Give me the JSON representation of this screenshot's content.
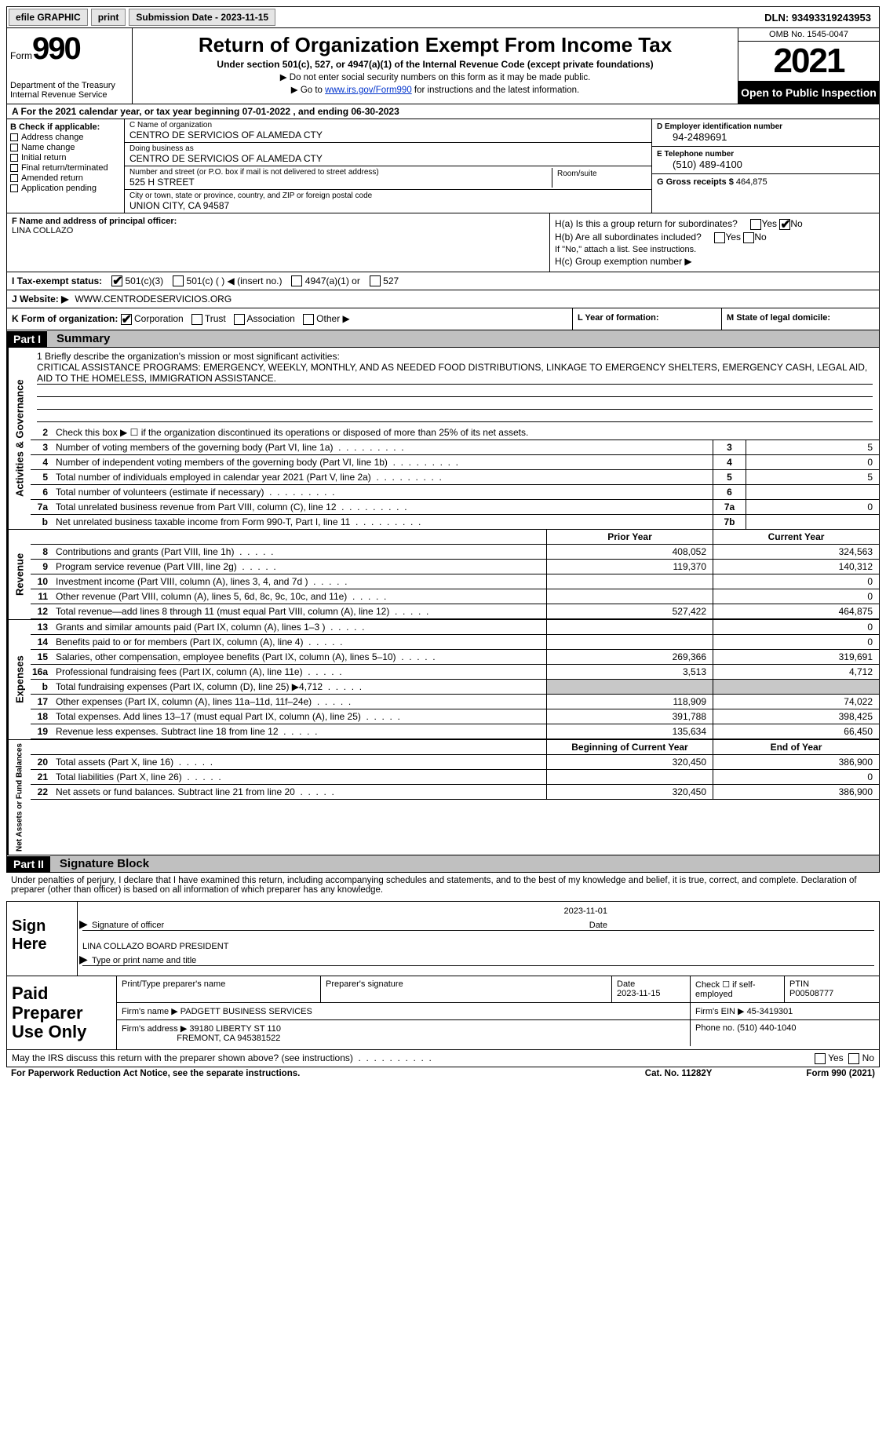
{
  "topbar": {
    "efile": "efile GRAPHIC",
    "print": "print",
    "submission": "Submission Date - 2023-11-15",
    "dln": "DLN: 93493319243953"
  },
  "header": {
    "form_label": "Form",
    "form_num": "990",
    "dept": "Department of the Treasury",
    "irs": "Internal Revenue Service",
    "title": "Return of Organization Exempt From Income Tax",
    "subtitle": "Under section 501(c), 527, or 4947(a)(1) of the Internal Revenue Code (except private foundations)",
    "note1": "▶ Do not enter social security numbers on this form as it may be made public.",
    "note2_prefix": "▶ Go to ",
    "note2_link": "www.irs.gov/Form990",
    "note2_suffix": " for instructions and the latest information.",
    "omb": "OMB No. 1545-0047",
    "year": "2021",
    "inspect": "Open to Public Inspection"
  },
  "row_a": "A For the 2021 calendar year, or tax year beginning 07-01-2022   , and ending 06-30-2023",
  "col_b": {
    "header": "B Check if applicable:",
    "items": [
      "Address change",
      "Name change",
      "Initial return",
      "Final return/terminated",
      "Amended return",
      "Application pending"
    ]
  },
  "col_c": {
    "name_label": "C Name of organization",
    "name": "CENTRO DE SERVICIOS OF ALAMEDA CTY",
    "dba_label": "Doing business as",
    "dba": "CENTRO DE SERVICIOS OF ALAMEDA CTY",
    "street_label": "Number and street (or P.O. box if mail is not delivered to street address)",
    "street": "525 H STREET",
    "room_label": "Room/suite",
    "city_label": "City or town, state or province, country, and ZIP or foreign postal code",
    "city": "UNION CITY, CA  94587"
  },
  "col_d": {
    "ein_label": "D Employer identification number",
    "ein": "94-2489691",
    "phone_label": "E Telephone number",
    "phone": "(510) 489-4100",
    "gross_label": "G Gross receipts $",
    "gross": "464,875"
  },
  "principal": {
    "label": "F Name and address of principal officer:",
    "name": "LINA COLLAZO"
  },
  "h": {
    "ha": "H(a)  Is this a group return for subordinates?",
    "hb": "H(b)  Are all subordinates included?",
    "hb_note": "If \"No,\" attach a list. See instructions.",
    "hc": "H(c)  Group exemption number ▶",
    "yes": "Yes",
    "no": "No"
  },
  "status": {
    "label": "I   Tax-exempt status:",
    "opt1": "501(c)(3)",
    "opt2": "501(c) (  ) ◀ (insert no.)",
    "opt3": "4947(a)(1) or",
    "opt4": "527"
  },
  "website": {
    "label": "J  Website: ▶",
    "value": "WWW.CENTRODESERVICIOS.ORG"
  },
  "org_form": {
    "k_label": "K Form of organization:",
    "corp": "Corporation",
    "trust": "Trust",
    "assoc": "Association",
    "other": "Other ▶",
    "l": "L Year of formation:",
    "m": "M State of legal domicile:"
  },
  "part1": {
    "header": "Part I",
    "title": "Summary"
  },
  "mission": {
    "q": "1   Briefly describe the organization's mission or most significant activities:",
    "text": "CRITICAL ASSISTANCE PROGRAMS: EMERGENCY, WEEKLY, MONTHLY, AND AS NEEDED FOOD DISTRIBUTIONS, LINKAGE TO EMERGENCY SHELTERS, EMERGENCY CASH, LEGAL AID, AID TO THE HOMELESS, IMMIGRATION ASSISTANCE."
  },
  "gov_lines": [
    {
      "n": "2",
      "d": "Check this box ▶ ☐  if the organization discontinued its operations or disposed of more than 25% of its net assets.",
      "box": "",
      "v": ""
    },
    {
      "n": "3",
      "d": "Number of voting members of the governing body (Part VI, line 1a)",
      "box": "3",
      "v": "5"
    },
    {
      "n": "4",
      "d": "Number of independent voting members of the governing body (Part VI, line 1b)",
      "box": "4",
      "v": "0"
    },
    {
      "n": "5",
      "d": "Total number of individuals employed in calendar year 2021 (Part V, line 2a)",
      "box": "5",
      "v": "5"
    },
    {
      "n": "6",
      "d": "Total number of volunteers (estimate if necessary)",
      "box": "6",
      "v": ""
    },
    {
      "n": "7a",
      "d": "Total unrelated business revenue from Part VIII, column (C), line 12",
      "box": "7a",
      "v": "0"
    },
    {
      "n": "b",
      "d": "Net unrelated business taxable income from Form 990-T, Part I, line 11",
      "box": "7b",
      "v": ""
    }
  ],
  "rev_head": {
    "prior": "Prior Year",
    "current": "Current Year"
  },
  "revenue": [
    {
      "n": "8",
      "d": "Contributions and grants (Part VIII, line 1h)",
      "p": "408,052",
      "c": "324,563"
    },
    {
      "n": "9",
      "d": "Program service revenue (Part VIII, line 2g)",
      "p": "119,370",
      "c": "140,312"
    },
    {
      "n": "10",
      "d": "Investment income (Part VIII, column (A), lines 3, 4, and 7d )",
      "p": "",
      "c": "0"
    },
    {
      "n": "11",
      "d": "Other revenue (Part VIII, column (A), lines 5, 6d, 8c, 9c, 10c, and 11e)",
      "p": "",
      "c": "0"
    },
    {
      "n": "12",
      "d": "Total revenue—add lines 8 through 11 (must equal Part VIII, column (A), line 12)",
      "p": "527,422",
      "c": "464,875"
    }
  ],
  "expenses": [
    {
      "n": "13",
      "d": "Grants and similar amounts paid (Part IX, column (A), lines 1–3 )",
      "p": "",
      "c": "0"
    },
    {
      "n": "14",
      "d": "Benefits paid to or for members (Part IX, column (A), line 4)",
      "p": "",
      "c": "0"
    },
    {
      "n": "15",
      "d": "Salaries, other compensation, employee benefits (Part IX, column (A), lines 5–10)",
      "p": "269,366",
      "c": "319,691"
    },
    {
      "n": "16a",
      "d": "Professional fundraising fees (Part IX, column (A), line 11e)",
      "p": "3,513",
      "c": "4,712"
    },
    {
      "n": "b",
      "d": "Total fundraising expenses (Part IX, column (D), line 25) ▶4,712",
      "p": "shade",
      "c": "shade"
    },
    {
      "n": "17",
      "d": "Other expenses (Part IX, column (A), lines 11a–11d, 11f–24e)",
      "p": "118,909",
      "c": "74,022"
    },
    {
      "n": "18",
      "d": "Total expenses. Add lines 13–17 (must equal Part IX, column (A), line 25)",
      "p": "391,788",
      "c": "398,425"
    },
    {
      "n": "19",
      "d": "Revenue less expenses. Subtract line 18 from line 12",
      "p": "135,634",
      "c": "66,450"
    }
  ],
  "net_head": {
    "prior": "Beginning of Current Year",
    "current": "End of Year"
  },
  "net": [
    {
      "n": "20",
      "d": "Total assets (Part X, line 16)",
      "p": "320,450",
      "c": "386,900"
    },
    {
      "n": "21",
      "d": "Total liabilities (Part X, line 26)",
      "p": "",
      "c": "0"
    },
    {
      "n": "22",
      "d": "Net assets or fund balances. Subtract line 21 from line 20",
      "p": "320,450",
      "c": "386,900"
    }
  ],
  "part2": {
    "header": "Part II",
    "title": "Signature Block"
  },
  "sig_text": "Under penalties of perjury, I declare that I have examined this return, including accompanying schedules and statements, and to the best of my knowledge and belief, it is true, correct, and complete. Declaration of preparer (other than officer) is based on all information of which preparer has any knowledge.",
  "sign": {
    "label": "Sign Here",
    "date": "2023-11-01",
    "sig_label": "Signature of officer",
    "date_label": "Date",
    "name": "LINA COLLAZO  BOARD PRESIDENT",
    "name_label": "Type or print name and title"
  },
  "prep": {
    "label": "Paid Preparer Use Only",
    "h_name": "Print/Type preparer's name",
    "h_sig": "Preparer's signature",
    "h_date": "Date",
    "date": "2023-11-15",
    "h_check": "Check ☐ if self-employed",
    "h_ptin": "PTIN",
    "ptin": "P00508777",
    "firm_label": "Firm's name    ▶",
    "firm": "PADGETT BUSINESS SERVICES",
    "ein_label": "Firm's EIN ▶",
    "ein": "45-3419301",
    "addr_label": "Firm's address ▶",
    "addr1": "39180 LIBERTY ST 110",
    "addr2": "FREMONT, CA  945381522",
    "phone_label": "Phone no.",
    "phone": "(510) 440-1040"
  },
  "discuss": "May the IRS discuss this return with the preparer shown above? (see instructions)",
  "footer": {
    "left": "For Paperwork Reduction Act Notice, see the separate instructions.",
    "mid": "Cat. No. 11282Y",
    "right": "Form 990 (2021)"
  },
  "vlabels": {
    "gov": "Activities & Governance",
    "rev": "Revenue",
    "exp": "Expenses",
    "net": "Net Assets or Fund Balances"
  }
}
